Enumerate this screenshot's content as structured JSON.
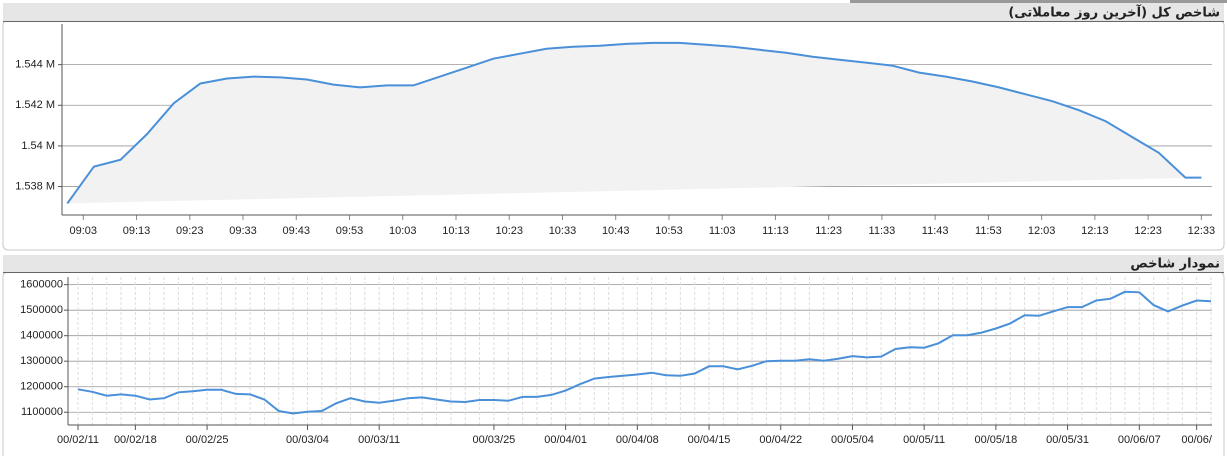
{
  "chart_data": [
    {
      "type": "line",
      "title": "شاخص کل (آخرین روز معاملاتی)",
      "x": [
        "09:00",
        "09:05",
        "09:10",
        "09:15",
        "09:20",
        "09:25",
        "09:30",
        "09:35",
        "09:40",
        "09:45",
        "09:50",
        "09:55",
        "10:00",
        "10:05",
        "10:10",
        "10:15",
        "10:20",
        "10:25",
        "10:30",
        "10:35",
        "10:40",
        "10:45",
        "10:50",
        "10:55",
        "11:00",
        "11:05",
        "11:10",
        "11:15",
        "11:20",
        "11:25",
        "11:30",
        "11:35",
        "11:40",
        "11:45",
        "11:50",
        "11:55",
        "12:00",
        "12:05",
        "12:10",
        "12:15",
        "12:20",
        "12:25",
        "12:30",
        "12:33"
      ],
      "values": [
        1537170,
        1538980,
        1539320,
        1540590,
        1542100,
        1543070,
        1543320,
        1543410,
        1543370,
        1543270,
        1543020,
        1542880,
        1542980,
        1542980,
        1543410,
        1543850,
        1544290,
        1544540,
        1544780,
        1544880,
        1544930,
        1545020,
        1545070,
        1545070,
        1544980,
        1544880,
        1544730,
        1544590,
        1544390,
        1544240,
        1544100,
        1543950,
        1543610,
        1543410,
        1543170,
        1542880,
        1542540,
        1542200,
        1541760,
        1541220,
        1540440,
        1539660,
        1538440,
        1538440
      ],
      "color": "#4a90d9",
      "fill_color": "#f2f2f2",
      "xlim": [
        "08:59",
        "12:35"
      ],
      "xticks": [
        "09:03",
        "09:13",
        "09:23",
        "09:33",
        "09:43",
        "09:53",
        "10:03",
        "10:13",
        "10:23",
        "10:33",
        "10:43",
        "10:53",
        "11:03",
        "11:13",
        "11:23",
        "11:33",
        "11:43",
        "11:53",
        "12:03",
        "12:13",
        "12:23",
        "12:33"
      ],
      "ylim": [
        1536600,
        1546000
      ],
      "yticks": [
        {
          "value": 1538000,
          "label": "1.538 M"
        },
        {
          "value": 1540000,
          "label": "1.54 M"
        },
        {
          "value": 1542000,
          "label": "1.542 M"
        },
        {
          "value": 1544000,
          "label": "1.544 M"
        }
      ],
      "grid": true
    },
    {
      "type": "line",
      "title": "نمودار شاخص",
      "categories": [
        "00/02/11",
        null,
        null,
        null,
        "00/02/18",
        null,
        null,
        null,
        null,
        "00/02/25",
        null,
        null,
        null,
        null,
        null,
        null,
        "00/03/04",
        null,
        null,
        null,
        null,
        "00/03/11",
        null,
        null,
        null,
        null,
        null,
        null,
        null,
        "00/03/25",
        null,
        null,
        null,
        null,
        "00/04/01",
        null,
        null,
        null,
        null,
        "00/04/08",
        null,
        null,
        null,
        null,
        "00/04/15",
        null,
        null,
        null,
        null,
        "00/04/22",
        null,
        null,
        null,
        null,
        "00/05/04",
        null,
        null,
        null,
        null,
        "00/05/11",
        null,
        null,
        null,
        null,
        "00/05/18",
        null,
        null,
        null,
        null,
        "00/05/31",
        null,
        null,
        null,
        null,
        "00/06/07",
        null,
        null,
        null,
        "00/06/",
        null
      ],
      "values": [
        1190000,
        1180000,
        1165000,
        1170000,
        1165000,
        1150000,
        1155000,
        1178000,
        1182000,
        1188000,
        1188000,
        1172000,
        1170000,
        1150000,
        1105000,
        1095000,
        1102000,
        1105000,
        1135000,
        1155000,
        1142000,
        1137000,
        1145000,
        1155000,
        1158000,
        1150000,
        1142000,
        1140000,
        1148000,
        1148000,
        1145000,
        1160000,
        1160000,
        1168000,
        1185000,
        1210000,
        1232000,
        1238000,
        1243000,
        1248000,
        1255000,
        1245000,
        1243000,
        1252000,
        1280000,
        1280000,
        1268000,
        1282000,
        1300000,
        1302000,
        1302000,
        1308000,
        1302000,
        1310000,
        1320000,
        1315000,
        1318000,
        1348000,
        1355000,
        1353000,
        1370000,
        1402000,
        1402000,
        1412000,
        1428000,
        1448000,
        1480000,
        1478000,
        1495000,
        1512000,
        1512000,
        1538000,
        1545000,
        1572000,
        1570000,
        1520000,
        1495000,
        1518000,
        1538000,
        1535000
      ],
      "color": "#4a90d9",
      "ylim": [
        1050000,
        1630000
      ],
      "yticks": [
        1100000,
        1200000,
        1300000,
        1400000,
        1500000,
        1600000
      ],
      "grid": true
    }
  ]
}
